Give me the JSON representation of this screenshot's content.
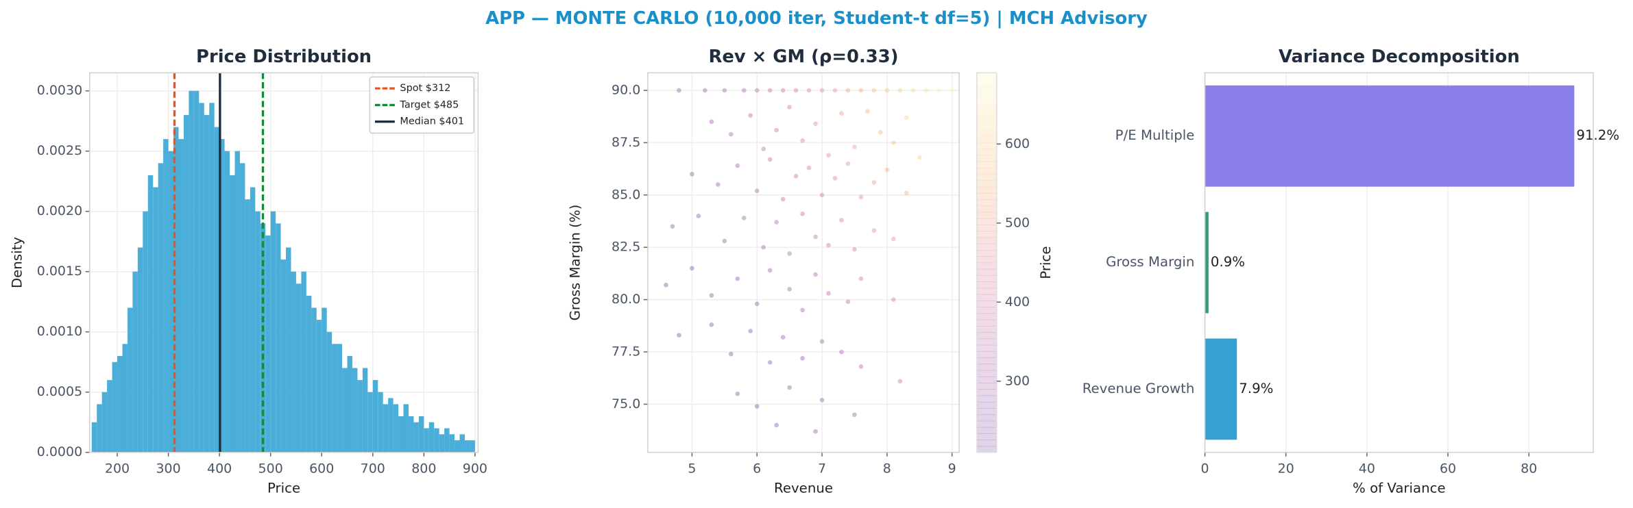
{
  "title": "APP — MONTE CARLO (10,000 iter, Student-t df=5) | MCH Advisory",
  "chart_data": [
    {
      "type": "histogram",
      "title": "Price Distribution",
      "xlabel": "Price",
      "ylabel": "Density",
      "bins": [
        150,
        160,
        170,
        180,
        190,
        200,
        210,
        220,
        230,
        240,
        250,
        260,
        270,
        280,
        290,
        300,
        310,
        320,
        330,
        340,
        350,
        360,
        370,
        380,
        390,
        400,
        410,
        420,
        430,
        440,
        450,
        460,
        470,
        480,
        490,
        500,
        510,
        520,
        530,
        540,
        550,
        560,
        570,
        580,
        590,
        600,
        610,
        620,
        630,
        640,
        650,
        660,
        670,
        680,
        690,
        700,
        710,
        720,
        730,
        740,
        750,
        760,
        770,
        780,
        790,
        800,
        810,
        820,
        830,
        840,
        850,
        860,
        870,
        880,
        890,
        900
      ],
      "values": [
        0.00025,
        0.0004,
        0.0005,
        0.0006,
        0.00075,
        0.0008,
        0.0009,
        0.0012,
        0.0015,
        0.0017,
        0.002,
        0.0023,
        0.0022,
        0.0024,
        0.0026,
        0.0025,
        0.0027,
        0.0026,
        0.0028,
        0.003,
        0.003,
        0.0029,
        0.0028,
        0.0029,
        0.0027,
        0.0026,
        0.0025,
        0.0023,
        0.0025,
        0.0024,
        0.0021,
        0.0022,
        0.002,
        0.0019,
        0.0018,
        0.002,
        0.0019,
        0.0016,
        0.0017,
        0.0015,
        0.0014,
        0.0015,
        0.0013,
        0.0012,
        0.0011,
        0.0012,
        0.001,
        0.0009,
        0.0009,
        0.0007,
        0.0008,
        0.0007,
        0.0006,
        0.0007,
        0.0005,
        0.0006,
        0.0005,
        0.0004,
        0.00045,
        0.0004,
        0.0003,
        0.0004,
        0.0003,
        0.00025,
        0.0003,
        0.0002,
        0.00025,
        0.0002,
        0.00015,
        0.0002,
        0.00015,
        0.0001,
        0.00015,
        0.0001,
        0.0001
      ],
      "color": "#4aaed9",
      "xlim": [
        146,
        906
      ],
      "ylim": [
        0,
        0.00315
      ],
      "xticks": [
        200,
        300,
        400,
        500,
        600,
        700,
        800,
        900
      ],
      "yticks": [
        {
          "value": 0,
          "label": "0.0000"
        },
        {
          "value": 0.0005,
          "label": "0.0005"
        },
        {
          "value": 0.001,
          "label": "0.0010"
        },
        {
          "value": 0.0015,
          "label": "0.0015"
        },
        {
          "value": 0.002,
          "label": "0.0020"
        },
        {
          "value": 0.0025,
          "label": "0.0025"
        },
        {
          "value": 0.003,
          "label": "0.0030"
        }
      ],
      "grid": true,
      "legend": "upper right",
      "lines": [
        {
          "name": "Spot $312",
          "value": 312,
          "color": "#e8531f",
          "dash": true
        },
        {
          "name": "Target $485",
          "value": 485,
          "color": "#15893a",
          "dash": true
        },
        {
          "name": "Median $401",
          "value": 401,
          "color": "#1f2d3d",
          "dash": false
        }
      ]
    },
    {
      "type": "scatter",
      "title": "Rev × GM (ρ=0.33)",
      "xlabel": "Revenue",
      "ylabel": "Gross Margin (%)",
      "x": [
        4.8,
        5.2,
        5.5,
        5.8,
        6.0,
        6.2,
        6.4,
        6.6,
        6.8,
        7.0,
        7.2,
        7.4,
        7.6,
        7.8,
        8.0,
        8.2,
        8.4,
        8.6,
        8.8,
        9.0,
        5.3,
        5.6,
        5.9,
        6.1,
        6.3,
        6.5,
        6.7,
        6.9,
        7.1,
        7.3,
        7.5,
        7.7,
        7.9,
        8.1,
        8.3,
        8.5,
        5.0,
        5.4,
        5.7,
        6.0,
        6.2,
        6.4,
        6.6,
        6.8,
        7.0,
        7.2,
        7.4,
        7.6,
        7.8,
        8.0,
        8.3,
        4.7,
        5.1,
        5.5,
        5.8,
        6.1,
        6.3,
        6.5,
        6.7,
        6.9,
        7.1,
        7.3,
        7.5,
        7.8,
        8.1,
        4.6,
        5.0,
        5.3,
        5.7,
        6.0,
        6.2,
        6.5,
        6.7,
        6.9,
        7.1,
        7.4,
        7.6,
        8.1,
        4.8,
        5.3,
        5.6,
        5.9,
        6.2,
        6.4,
        6.7,
        7.0,
        7.3,
        7.6,
        8.2,
        5.7,
        6.0,
        6.5,
        7.0,
        7.5,
        6.9,
        6.3
      ],
      "y": [
        90,
        90,
        90,
        90,
        90,
        90,
        90,
        90,
        90,
        90,
        90,
        90,
        90,
        90,
        90,
        90,
        90,
        90,
        90,
        90,
        88.5,
        87.9,
        88.8,
        87.2,
        88.1,
        89.2,
        87.6,
        88.4,
        86.9,
        88.9,
        87.3,
        89.0,
        88.0,
        87.5,
        88.7,
        86.8,
        86.0,
        85.5,
        86.4,
        85.2,
        86.7,
        84.8,
        85.9,
        86.3,
        85.0,
        85.8,
        86.5,
        84.9,
        85.6,
        86.2,
        85.1,
        83.5,
        84.0,
        82.8,
        83.9,
        82.5,
        83.7,
        82.2,
        84.1,
        83.0,
        82.6,
        83.8,
        82.4,
        83.3,
        82.9,
        80.7,
        81.5,
        80.2,
        81.0,
        79.8,
        81.4,
        80.5,
        79.5,
        81.2,
        80.3,
        79.9,
        81.0,
        80.0,
        78.3,
        78.8,
        77.4,
        78.5,
        77.0,
        78.2,
        77.2,
        78.0,
        77.5,
        76.8,
        76.1,
        75.5,
        74.9,
        75.8,
        75.2,
        74.5,
        73.7,
        74.0
      ],
      "c": [
        260,
        280,
        300,
        330,
        360,
        380,
        400,
        420,
        450,
        470,
        490,
        520,
        540,
        570,
        590,
        610,
        630,
        650,
        670,
        690,
        290,
        310,
        340,
        350,
        380,
        410,
        420,
        450,
        460,
        500,
        510,
        550,
        560,
        580,
        610,
        600,
        260,
        280,
        300,
        320,
        350,
        350,
        380,
        410,
        410,
        440,
        480,
        470,
        510,
        540,
        550,
        240,
        250,
        260,
        280,
        290,
        320,
        320,
        360,
        360,
        380,
        420,
        420,
        460,
        490,
        220,
        230,
        240,
        255,
        260,
        285,
        290,
        300,
        330,
        340,
        360,
        390,
        420,
        215,
        225,
        230,
        245,
        250,
        265,
        275,
        300,
        315,
        330,
        360,
        225,
        230,
        250,
        270,
        290,
        255,
        235
      ],
      "colormap": [
        "#4a0c7a",
        "#8c2a8c",
        "#d0506a",
        "#f4a040",
        "#fcf4a0"
      ],
      "alpha": 0.3,
      "clim": [
        210,
        690
      ],
      "cticks": [
        300,
        400,
        500,
        600
      ],
      "clabel": "Price",
      "xlim": [
        4.32,
        9.11
      ],
      "ylim": [
        72.7,
        90.84
      ],
      "xticks": [
        5,
        6,
        7,
        8,
        9
      ],
      "yticks": [
        {
          "value": 75,
          "label": "75.0"
        },
        {
          "value": 77.5,
          "label": "77.5"
        },
        {
          "value": 80,
          "label": "80.0"
        },
        {
          "value": 82.5,
          "label": "82.5"
        },
        {
          "value": 85,
          "label": "85.0"
        },
        {
          "value": 87.5,
          "label": "87.5"
        },
        {
          "value": 90,
          "label": "90.0"
        }
      ],
      "grid": true
    },
    {
      "type": "barh",
      "title": "Variance Decomposition",
      "xlabel": "% of Variance",
      "categories": [
        "P/E Multiple",
        "Gross Margin",
        "Revenue Growth"
      ],
      "values": [
        91.2,
        0.9,
        7.9
      ],
      "value_labels": [
        "91.2%",
        "0.9%",
        "7.9%"
      ],
      "colors": [
        "#8a7fe8",
        "#3a9a7a",
        "#36a2d4"
      ],
      "xlim": [
        0,
        95.9
      ],
      "xticks": [
        0,
        20,
        40,
        60,
        80
      ],
      "grid": true
    }
  ]
}
